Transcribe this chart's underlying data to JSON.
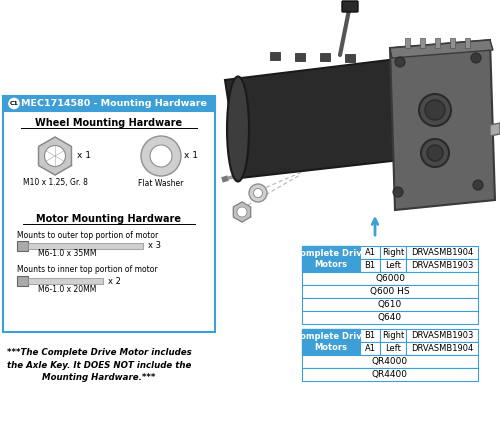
{
  "bg_color": "#ffffff",
  "border_color": "#3d9fd5",
  "header_bg": "#3d9fd5",
  "header_text_color": "#ffffff",
  "c1_label": "C1",
  "part_number": "MEC1714580 - Mounting Hardware",
  "wheel_hw_title": "Wheel Mounting Hardware",
  "motor_hw_title": "Motor Mounting Hardware",
  "nut_label": "M10 x 1.25, Gr. 8",
  "washer_label": "Flat Washer",
  "bolt1_label": "M6-1.0 x 35MM",
  "bolt1_desc": "Mounts to outer top portion of motor",
  "bolt1_qty": "x 3",
  "bolt2_label": "M6-1.0 x 20MM",
  "bolt2_desc": "Mounts to inner top portion of motor",
  "bolt2_qty": "x 2",
  "qty1": "x 1",
  "footer_text": "***The Complete Drive Motor includes\nthe Axle Key. It DOES NOT include the\nMounting Hardware.***",
  "table1_header": "Complete Drive\nMotors",
  "table1_rows": [
    [
      "A1",
      "Right",
      "DRVASMB1904"
    ],
    [
      "B1",
      "Left",
      "DRVASMB1903"
    ]
  ],
  "table1_models": [
    "Q6000",
    "Q600 HS",
    "Q610",
    "Q640"
  ],
  "table2_header": "Complete Drive\nMotors",
  "table2_rows": [
    [
      "B1",
      "Right",
      "DRVASMB1903"
    ],
    [
      "A1",
      "Left",
      "DRVASMB1904"
    ]
  ],
  "table2_models": [
    "QR4000",
    "QR4400"
  ],
  "cell_bg_blue": "#3d9fd5",
  "table_border": "#3d9fd5"
}
